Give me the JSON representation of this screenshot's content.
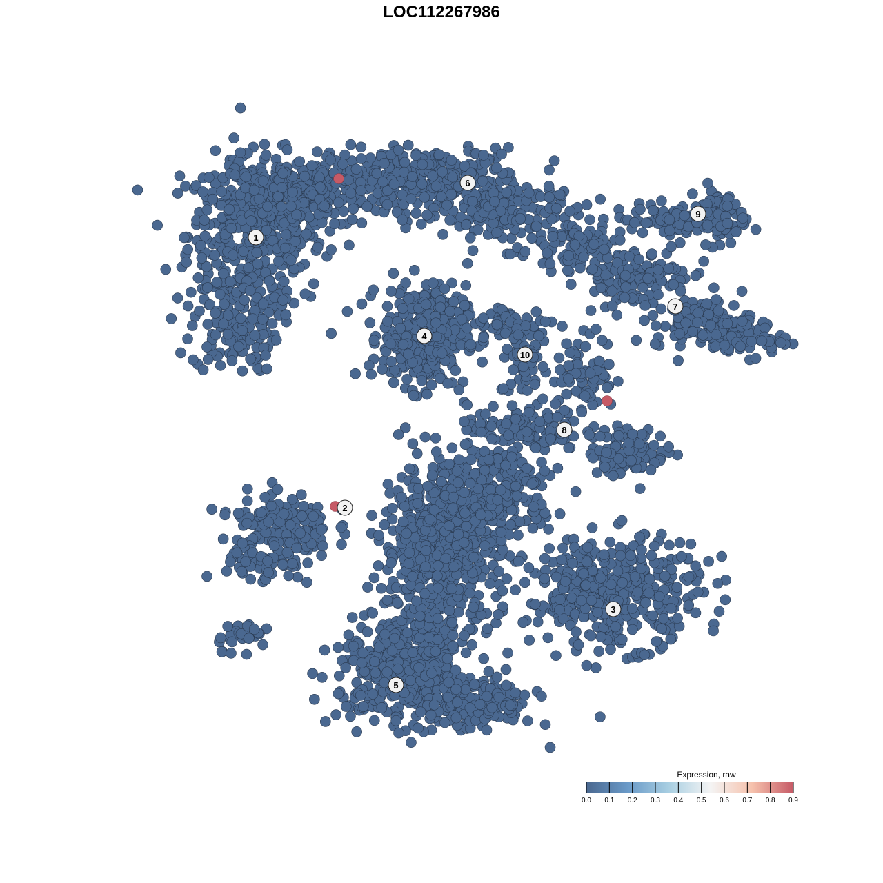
{
  "chart_data": {
    "type": "scatter",
    "title": "LOC112267986",
    "xlabel": "",
    "ylabel": "",
    "grid": false,
    "axes_visible": false,
    "point_color_low": "#4a6890",
    "point_color_high": "#c65a66",
    "cluster_labels": [
      {
        "label": "1",
        "x": -26.9,
        "y": 29.6
      },
      {
        "label": "2",
        "x": -14.0,
        "y": -9.6
      },
      {
        "label": "3",
        "x": 24.9,
        "y": -24.3
      },
      {
        "label": "4",
        "x": -2.5,
        "y": 15.3
      },
      {
        "label": "5",
        "x": -6.6,
        "y": -35.3
      },
      {
        "label": "6",
        "x": 3.8,
        "y": 37.5
      },
      {
        "label": "7",
        "x": 33.9,
        "y": 19.6
      },
      {
        "label": "8",
        "x": 17.8,
        "y": 1.7
      },
      {
        "label": "9",
        "x": 37.2,
        "y": 33.0
      },
      {
        "label": "10",
        "x": 12.1,
        "y": 12.6
      }
    ],
    "baseline_expression": 0.0,
    "expressing_points": [
      {
        "x": -14.9,
        "y": 38.1,
        "value": 0.9
      },
      {
        "x": 24.0,
        "y": 5.9,
        "value": 0.9
      },
      {
        "x": -15.4,
        "y": -9.4,
        "value": 0.9
      }
    ],
    "legend": {
      "title": "Expression, raw",
      "placement": "bottom-right",
      "range": [
        0,
        0.9
      ],
      "ticks": [
        "0.0",
        "0.1",
        "0.2",
        "0.3",
        "0.4",
        "0.5",
        "0.6",
        "0.7",
        "0.8",
        "0.9"
      ],
      "colors": [
        "#4a6890",
        "#6a9ac8",
        "#a9cfe2",
        "#f4f4f4",
        "#f6c2ad",
        "#c65a66"
      ]
    }
  }
}
